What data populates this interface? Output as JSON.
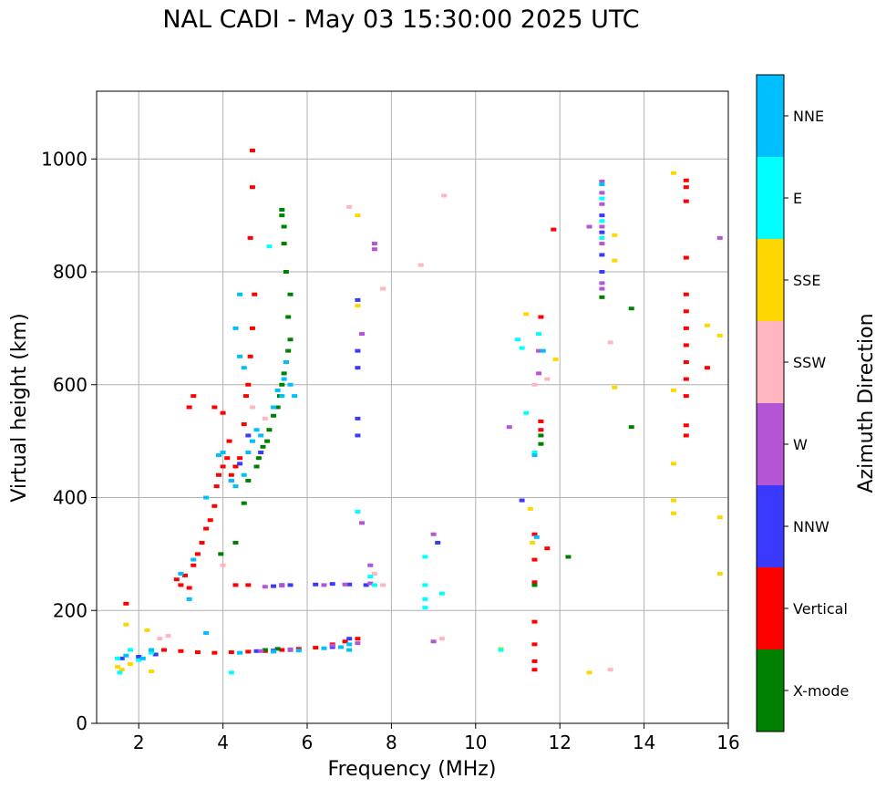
{
  "title": "NAL CADI - May 03 15:30:00 2025 UTC",
  "chart_data": {
    "type": "scatter",
    "title": "NAL CADI - May 03 15:30:00 2025 UTC",
    "xlabel": "Frequency (MHz)",
    "ylabel": "Virtual height (km)",
    "xlim": [
      1,
      16
    ],
    "ylim": [
      0,
      1120
    ],
    "xticks": [
      2,
      4,
      6,
      8,
      10,
      12,
      14,
      16
    ],
    "yticks": [
      0,
      200,
      400,
      600,
      800,
      1000
    ],
    "grid": true,
    "colorbar": {
      "label": "Azimuth Direction",
      "categories": [
        {
          "name": "X-mode",
          "color": "#008000"
        },
        {
          "name": "Vertical",
          "color": "#ff0000"
        },
        {
          "name": "NNW",
          "color": "#3a3aff"
        },
        {
          "name": "W",
          "color": "#b455d6"
        },
        {
          "name": "SSW",
          "color": "#ffb6c1"
        },
        {
          "name": "SSE",
          "color": "#ffd700"
        },
        {
          "name": "E",
          "color": "#00ffff"
        },
        {
          "name": "NNE",
          "color": "#00bfff"
        }
      ]
    },
    "series": [
      {
        "name": "Vertical",
        "points": [
          [
            1.7,
            212
          ],
          [
            2.9,
            255
          ],
          [
            3.0,
            245
          ],
          [
            3.1,
            262
          ],
          [
            3.2,
            240
          ],
          [
            3.3,
            280
          ],
          [
            3.4,
            300
          ],
          [
            3.5,
            320
          ],
          [
            3.6,
            345
          ],
          [
            3.7,
            360
          ],
          [
            3.8,
            385
          ],
          [
            3.85,
            420
          ],
          [
            3.9,
            440
          ],
          [
            4.0,
            455
          ],
          [
            4.1,
            470
          ],
          [
            4.15,
            500
          ],
          [
            4.2,
            440
          ],
          [
            4.3,
            455
          ],
          [
            4.4,
            470
          ],
          [
            4.5,
            530
          ],
          [
            4.55,
            580
          ],
          [
            4.6,
            600
          ],
          [
            4.65,
            650
          ],
          [
            4.7,
            700
          ],
          [
            4.75,
            760
          ],
          [
            4.65,
            860
          ],
          [
            4.7,
            950
          ],
          [
            4.7,
            1015
          ],
          [
            3.2,
            560
          ],
          [
            3.3,
            580
          ],
          [
            3.8,
            560
          ],
          [
            4.0,
            550
          ],
          [
            2.6,
            130
          ],
          [
            3.0,
            128
          ],
          [
            3.4,
            126
          ],
          [
            3.8,
            125
          ],
          [
            4.2,
            126
          ],
          [
            4.6,
            127
          ],
          [
            5.0,
            128
          ],
          [
            5.4,
            130
          ],
          [
            5.8,
            132
          ],
          [
            6.2,
            134
          ],
          [
            6.6,
            140
          ],
          [
            6.9,
            145
          ],
          [
            7.2,
            150
          ],
          [
            4.3,
            245
          ],
          [
            4.6,
            245
          ],
          [
            11.4,
            335
          ],
          [
            11.4,
            290
          ],
          [
            11.4,
            250
          ],
          [
            11.4,
            180
          ],
          [
            11.4,
            140
          ],
          [
            11.4,
            110
          ],
          [
            11.4,
            95
          ],
          [
            11.55,
            520
          ],
          [
            11.55,
            535
          ],
          [
            11.55,
            720
          ],
          [
            11.7,
            310
          ],
          [
            11.85,
            875
          ],
          [
            15.0,
            925
          ],
          [
            15.0,
            950
          ],
          [
            15.0,
            962
          ],
          [
            15.0,
            825
          ],
          [
            15.0,
            760
          ],
          [
            15.0,
            730
          ],
          [
            15.0,
            700
          ],
          [
            15.0,
            670
          ],
          [
            15.0,
            640
          ],
          [
            15.0,
            610
          ],
          [
            15.0,
            580
          ],
          [
            15.0,
            528
          ],
          [
            15.0,
            510
          ],
          [
            15.5,
            630
          ]
        ]
      },
      {
        "name": "X-mode",
        "points": [
          [
            3.95,
            300
          ],
          [
            4.3,
            320
          ],
          [
            4.5,
            390
          ],
          [
            4.6,
            430
          ],
          [
            4.8,
            455
          ],
          [
            4.85,
            470
          ],
          [
            4.95,
            490
          ],
          [
            5.05,
            500
          ],
          [
            5.1,
            520
          ],
          [
            5.2,
            545
          ],
          [
            5.3,
            560
          ],
          [
            5.35,
            580
          ],
          [
            5.4,
            600
          ],
          [
            5.45,
            620
          ],
          [
            5.5,
            640
          ],
          [
            5.55,
            660
          ],
          [
            5.6,
            680
          ],
          [
            5.55,
            720
          ],
          [
            5.6,
            760
          ],
          [
            5.5,
            800
          ],
          [
            5.45,
            850
          ],
          [
            5.45,
            880
          ],
          [
            5.4,
            900
          ],
          [
            5.4,
            910
          ],
          [
            5.0,
            130
          ],
          [
            5.3,
            132
          ],
          [
            5.6,
            131
          ],
          [
            11.55,
            495
          ],
          [
            11.55,
            510
          ],
          [
            11.4,
            245
          ],
          [
            12.2,
            295
          ],
          [
            13.0,
            755
          ],
          [
            13.7,
            525
          ],
          [
            13.7,
            735
          ]
        ]
      },
      {
        "name": "NNW",
        "points": [
          [
            1.6,
            115
          ],
          [
            2.0,
            118
          ],
          [
            2.4,
            122
          ],
          [
            4.2,
            430
          ],
          [
            4.4,
            460
          ],
          [
            4.6,
            510
          ],
          [
            4.9,
            480
          ],
          [
            5.2,
            243
          ],
          [
            5.4,
            245
          ],
          [
            5.6,
            245
          ],
          [
            6.2,
            246
          ],
          [
            6.6,
            247
          ],
          [
            7.0,
            246
          ],
          [
            7.4,
            245
          ],
          [
            4.8,
            128
          ],
          [
            5.2,
            129
          ],
          [
            5.6,
            130
          ],
          [
            6.6,
            135
          ],
          [
            7.0,
            150
          ],
          [
            7.2,
            750
          ],
          [
            7.2,
            660
          ],
          [
            7.2,
            630
          ],
          [
            7.2,
            540
          ],
          [
            7.2,
            510
          ],
          [
            9.1,
            320
          ],
          [
            11.1,
            395
          ],
          [
            13.0,
            900
          ],
          [
            13.0,
            870
          ],
          [
            13.0,
            830
          ],
          [
            13.0,
            800
          ]
        ]
      },
      {
        "name": "W",
        "points": [
          [
            5.0,
            242
          ],
          [
            5.4,
            244
          ],
          [
            6.4,
            245
          ],
          [
            6.9,
            246
          ],
          [
            7.5,
            248
          ],
          [
            7.6,
            850
          ],
          [
            7.6,
            840
          ],
          [
            7.3,
            690
          ],
          [
            7.3,
            355
          ],
          [
            7.5,
            280
          ],
          [
            9.0,
            335
          ],
          [
            9.0,
            145
          ],
          [
            10.8,
            525
          ],
          [
            11.5,
            660
          ],
          [
            11.5,
            620
          ],
          [
            12.7,
            880
          ],
          [
            13.0,
            960
          ],
          [
            13.0,
            940
          ],
          [
            13.0,
            920
          ],
          [
            13.0,
            880
          ],
          [
            13.0,
            850
          ],
          [
            13.0,
            780
          ],
          [
            13.0,
            770
          ],
          [
            15.8,
            860
          ],
          [
            4.9,
            128
          ],
          [
            5.6,
            131
          ],
          [
            6.6,
            138
          ],
          [
            7.2,
            142
          ]
        ]
      },
      {
        "name": "SSW",
        "points": [
          [
            2.5,
            150
          ],
          [
            2.7,
            155
          ],
          [
            4.0,
            280
          ],
          [
            4.7,
            560
          ],
          [
            5.0,
            540
          ],
          [
            7.0,
            915
          ],
          [
            7.6,
            265
          ],
          [
            7.8,
            245
          ],
          [
            7.8,
            770
          ],
          [
            8.7,
            812
          ],
          [
            9.25,
            935
          ],
          [
            9.2,
            150
          ],
          [
            13.2,
            675
          ],
          [
            13.2,
            95
          ],
          [
            11.7,
            610
          ],
          [
            11.4,
            600
          ]
        ]
      },
      {
        "name": "SSE",
        "points": [
          [
            1.5,
            100
          ],
          [
            1.6,
            95
          ],
          [
            1.7,
            175
          ],
          [
            1.8,
            105
          ],
          [
            2.2,
            165
          ],
          [
            2.3,
            92
          ],
          [
            7.2,
            900
          ],
          [
            7.2,
            740
          ],
          [
            10.6,
            132
          ],
          [
            11.2,
            725
          ],
          [
            11.3,
            380
          ],
          [
            11.35,
            320
          ],
          [
            11.9,
            645
          ],
          [
            13.3,
            865
          ],
          [
            13.3,
            820
          ],
          [
            13.3,
            595
          ],
          [
            12.7,
            90
          ],
          [
            14.7,
            975
          ],
          [
            14.7,
            590
          ],
          [
            14.7,
            460
          ],
          [
            14.7,
            395
          ],
          [
            14.7,
            372
          ],
          [
            15.5,
            705
          ],
          [
            15.8,
            687
          ],
          [
            15.8,
            365
          ],
          [
            15.8,
            265
          ]
        ]
      },
      {
        "name": "E",
        "points": [
          [
            1.5,
            115
          ],
          [
            1.55,
            90
          ],
          [
            1.8,
            130
          ],
          [
            2.0,
            112
          ],
          [
            2.3,
            125
          ],
          [
            4.2,
            90
          ],
          [
            5.1,
            845
          ],
          [
            7.2,
            375
          ],
          [
            7.5,
            260
          ],
          [
            7.6,
            245
          ],
          [
            8.8,
            295
          ],
          [
            8.8,
            245
          ],
          [
            8.8,
            220
          ],
          [
            8.8,
            205
          ],
          [
            9.2,
            230
          ],
          [
            10.6,
            130
          ],
          [
            11.0,
            680
          ],
          [
            11.1,
            665
          ],
          [
            11.2,
            550
          ],
          [
            11.4,
            480
          ],
          [
            11.5,
            690
          ],
          [
            13.0,
            930
          ],
          [
            13.0,
            890
          ],
          [
            13.0,
            860
          ]
        ]
      },
      {
        "name": "NNE",
        "points": [
          [
            1.7,
            120
          ],
          [
            2.1,
            115
          ],
          [
            2.3,
            130
          ],
          [
            3.0,
            265
          ],
          [
            3.3,
            290
          ],
          [
            3.6,
            400
          ],
          [
            3.9,
            475
          ],
          [
            4.0,
            480
          ],
          [
            4.2,
            430
          ],
          [
            4.3,
            420
          ],
          [
            4.5,
            440
          ],
          [
            4.6,
            480
          ],
          [
            4.7,
            500
          ],
          [
            4.8,
            520
          ],
          [
            4.9,
            510
          ],
          [
            5.2,
            560
          ],
          [
            5.3,
            590
          ],
          [
            5.4,
            580
          ],
          [
            5.45,
            610
          ],
          [
            5.5,
            640
          ],
          [
            5.6,
            600
          ],
          [
            5.7,
            580
          ],
          [
            4.5,
            630
          ],
          [
            4.4,
            650
          ],
          [
            4.3,
            700
          ],
          [
            4.4,
            760
          ],
          [
            3.2,
            220
          ],
          [
            3.6,
            160
          ],
          [
            4.4,
            125
          ],
          [
            5.2,
            127
          ],
          [
            5.8,
            129
          ],
          [
            6.4,
            133
          ],
          [
            6.8,
            135
          ],
          [
            7.0,
            140
          ],
          [
            7.0,
            130
          ],
          [
            11.4,
            475
          ],
          [
            11.45,
            330
          ],
          [
            11.6,
            660
          ],
          [
            13.0,
            955
          ]
        ]
      }
    ]
  }
}
